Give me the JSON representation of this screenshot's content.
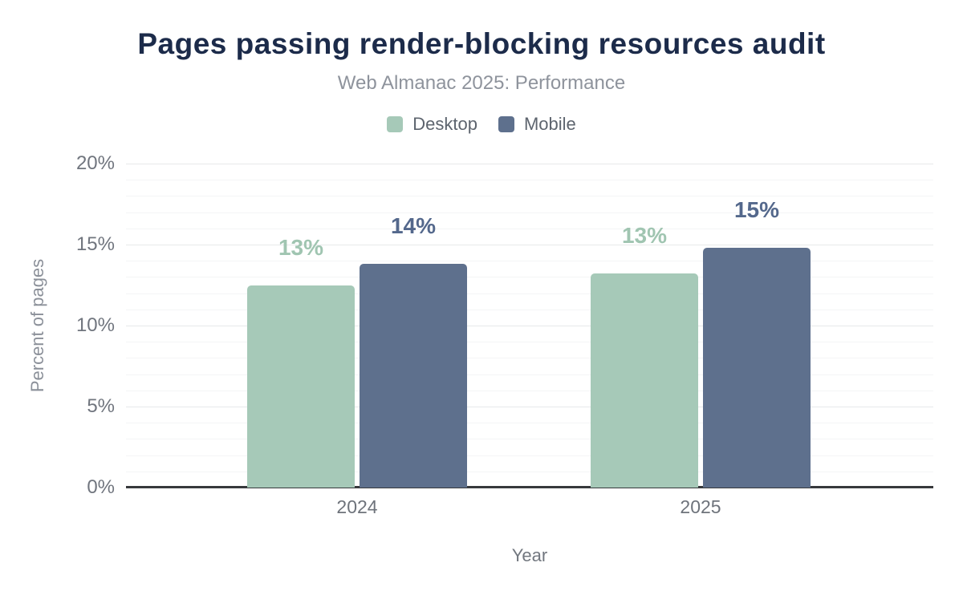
{
  "chart_data": {
    "type": "bar",
    "title": "Pages passing render-blocking resources audit",
    "subtitle": "Web Almanac 2025: Performance",
    "xlabel": "Year",
    "ylabel": "Percent of pages",
    "categories": [
      "2024",
      "2025"
    ],
    "series": [
      {
        "name": "Desktop",
        "color": "#a6c9b8",
        "label_color": "#a0c5b1",
        "values": [
          12.5,
          13.2
        ],
        "labels": [
          "13%",
          "13%"
        ]
      },
      {
        "name": "Mobile",
        "color": "#5e708d",
        "label_color": "#54688c",
        "values": [
          13.8,
          14.8
        ],
        "labels": [
          "14%",
          "15%"
        ]
      }
    ],
    "ylim": [
      0,
      20
    ],
    "yticks": [
      0,
      5,
      10,
      15,
      20
    ],
    "ytick_suffix": "%",
    "minor_grid_step": 1,
    "grid": "horizontal",
    "legend_position": "top-center"
  },
  "colors": {
    "title": "#1c2b4a",
    "subtitle": "#8e939c",
    "legend_text": "#5d646e",
    "tick_label": "#70757e",
    "axis_title": "#8b9099",
    "axis_line": "#37393c",
    "grid_major": "#e7e9ea",
    "grid_minor": "#f4f5f6",
    "background": "#ffffff"
  }
}
